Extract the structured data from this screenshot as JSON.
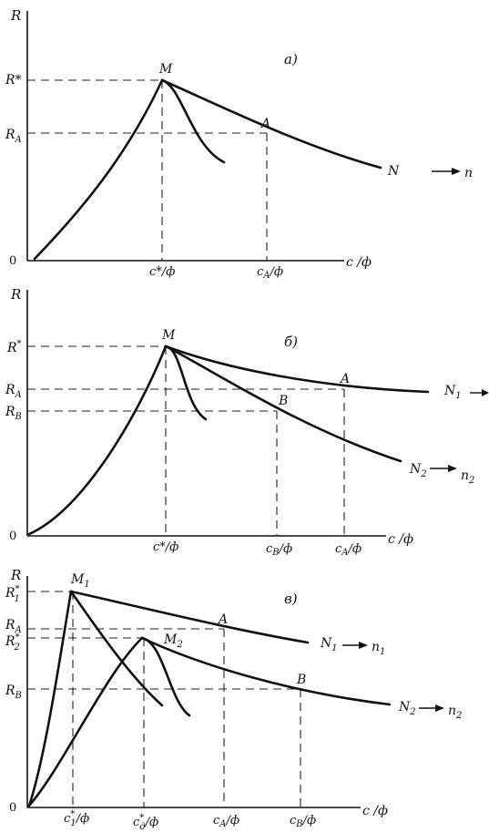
{
  "panel_a": {
    "label": "а)",
    "axis_y": "R",
    "axis_x": "c /ф",
    "origin": "0",
    "y_star": "R*",
    "y_A": "R",
    "y_A_sub": "A",
    "point_M": "M",
    "point_A": "A",
    "curve_N": "N",
    "arrow_n": "n",
    "x_star": "c*/ф",
    "x_A": "c",
    "x_A_sub": "A",
    "x_A_tail": "/ф"
  },
  "panel_b": {
    "label": "б)",
    "axis_y": "R",
    "axis_x": "c /ф",
    "origin": "0",
    "y_star": "R",
    "y_star_sup": "*",
    "y_A": "R",
    "y_A_sub": "A",
    "y_B": "R",
    "y_B_sub": "B",
    "point_M": "M",
    "point_A": "A",
    "point_B": "B",
    "curve_N1": "N",
    "curve_N1_sub": "1",
    "curve_N2": "N",
    "curve_N2_sub": "2",
    "arrow_n2": "n",
    "arrow_n2_sub": "2",
    "x_star": "c*/ф",
    "x_B": "c",
    "x_B_sub": "B",
    "x_B_tail": "/ф",
    "x_A": "c",
    "x_A_sub": "A",
    "x_A_tail": "/ф"
  },
  "panel_c": {
    "label": "в)",
    "axis_y": "R",
    "axis_x": "c /ф",
    "origin": "0",
    "y_star1": "R",
    "y_star1_sub": "1",
    "y_star1_sup": "*",
    "y_A": "R",
    "y_A_sub": "A",
    "y_star2": "R",
    "y_star2_sub": "2",
    "y_star2_sup": "*",
    "y_B": "R",
    "y_B_sub": "B",
    "point_M1": "M",
    "point_M1_sub": "1",
    "point_M2": "M",
    "point_M2_sub": "2",
    "point_A": "A",
    "point_B": "B",
    "curve_N1": "N",
    "curve_N1_sub": "1",
    "arrow_n1": "n",
    "arrow_n1_sub": "1",
    "curve_N2": "N",
    "curve_N2_sub": "2",
    "arrow_n2": "n",
    "arrow_n2_sub": "2",
    "x_star1": "c",
    "x_star1_sub": "1",
    "x_star1_sup": "*",
    "x_star1_tail": "/ф",
    "x_starD": "c",
    "x_starD_sub": "д",
    "x_starD_sup": "*",
    "x_starD_tail": "/ф",
    "x_A": "c",
    "x_A_sub": "A",
    "x_A_tail": "/ф",
    "x_B": "c",
    "x_B_sub": "B",
    "x_B_tail": "/ф"
  }
}
